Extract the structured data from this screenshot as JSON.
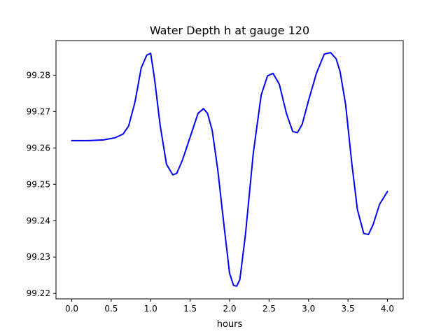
{
  "chart_data": {
    "type": "line",
    "title": "Water Depth h at gauge 120",
    "xlabel": "hours",
    "ylabel": "",
    "xlim": [
      -0.2,
      4.2
    ],
    "ylim": [
      99.2185,
      99.2895
    ],
    "xticks": [
      0.0,
      0.5,
      1.0,
      1.5,
      2.0,
      2.5,
      3.0,
      3.5,
      4.0
    ],
    "xtick_labels": [
      "0.0",
      "0.5",
      "1.0",
      "1.5",
      "2.0",
      "2.5",
      "3.0",
      "3.5",
      "4.0"
    ],
    "yticks": [
      99.22,
      99.23,
      99.24,
      99.25,
      99.26,
      99.27,
      99.28
    ],
    "ytick_labels": [
      "99.22",
      "99.23",
      "99.24",
      "99.25",
      "99.26",
      "99.27",
      "99.28"
    ],
    "grid": false,
    "series": [
      {
        "color": "#0000ff",
        "x": [
          0.0,
          0.2,
          0.4,
          0.55,
          0.65,
          0.72,
          0.8,
          0.88,
          0.95,
          1.0,
          1.05,
          1.12,
          1.2,
          1.28,
          1.33,
          1.4,
          1.5,
          1.6,
          1.67,
          1.72,
          1.78,
          1.85,
          1.93,
          2.0,
          2.05,
          2.09,
          2.13,
          2.2,
          2.3,
          2.4,
          2.48,
          2.55,
          2.63,
          2.72,
          2.8,
          2.86,
          2.92,
          3.0,
          3.1,
          3.2,
          3.28,
          3.35,
          3.4,
          3.47,
          3.55,
          3.62,
          3.7,
          3.76,
          3.82,
          3.9,
          4.0
        ],
        "y": [
          99.262,
          99.262,
          99.2622,
          99.2628,
          99.2638,
          99.266,
          99.2725,
          99.282,
          99.2855,
          99.286,
          99.2788,
          99.2662,
          99.2555,
          99.2526,
          99.253,
          99.2565,
          99.263,
          99.2695,
          99.2708,
          99.2695,
          99.2648,
          99.254,
          99.2385,
          99.2255,
          99.2222,
          99.222,
          99.2238,
          99.236,
          99.2585,
          99.2745,
          99.2798,
          99.2805,
          99.2775,
          99.2695,
          99.2645,
          99.2642,
          99.2665,
          99.273,
          99.2805,
          99.2858,
          99.2862,
          99.2845,
          99.281,
          99.272,
          99.2555,
          99.243,
          99.2365,
          99.2362,
          99.239,
          99.2445,
          99.248
        ]
      }
    ]
  }
}
